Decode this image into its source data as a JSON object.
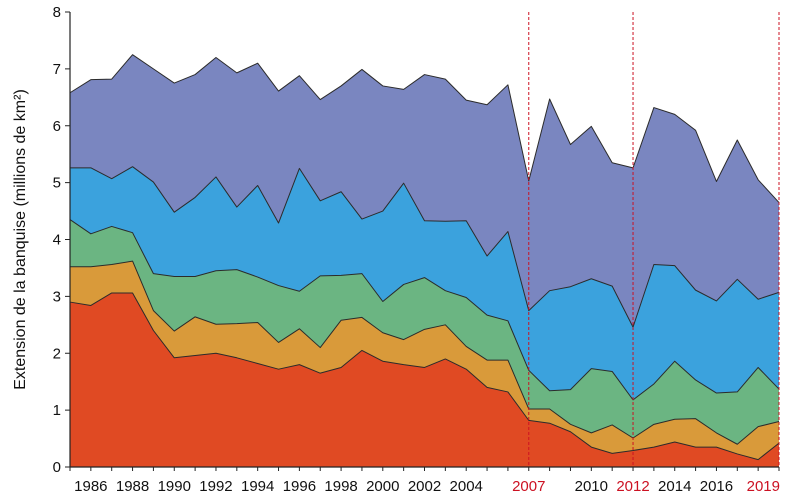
{
  "chart_data": {
    "type": "area",
    "stacked": true,
    "ylabel": "Extension de la banquise (millions de km²)",
    "ylim": [
      0,
      8
    ],
    "yticks": [
      "0",
      "1",
      "2",
      "3",
      "4",
      "5",
      "6",
      "7",
      "8"
    ],
    "xlim": [
      1985,
      2019
    ],
    "x": [
      1985,
      1986,
      1987,
      1988,
      1989,
      1990,
      1991,
      1992,
      1993,
      1994,
      1995,
      1996,
      1997,
      1998,
      1999,
      2000,
      2001,
      2002,
      2003,
      2004,
      2005,
      2006,
      2007,
      2008,
      2009,
      2010,
      2011,
      2012,
      2013,
      2014,
      2015,
      2016,
      2017,
      2018,
      2019
    ],
    "xticks": [
      {
        "value": 1986,
        "label": "1986",
        "color": "#111111"
      },
      {
        "value": 1988,
        "label": "1988",
        "color": "#111111"
      },
      {
        "value": 1990,
        "label": "1990",
        "color": "#111111"
      },
      {
        "value": 1992,
        "label": "1992",
        "color": "#111111"
      },
      {
        "value": 1994,
        "label": "1994",
        "color": "#111111"
      },
      {
        "value": 1996,
        "label": "1996",
        "color": "#111111"
      },
      {
        "value": 1998,
        "label": "1998",
        "color": "#111111"
      },
      {
        "value": 2000,
        "label": "2000",
        "color": "#111111"
      },
      {
        "value": 2002,
        "label": "2002",
        "color": "#111111"
      },
      {
        "value": 2004,
        "label": "2004",
        "color": "#111111"
      },
      {
        "value": 2007,
        "label": "2007",
        "color": "#cc1122"
      },
      {
        "value": 2010,
        "label": "2010",
        "color": "#111111"
      },
      {
        "value": 2012,
        "label": "2012",
        "color": "#cc1122"
      },
      {
        "value": 2014,
        "label": "2014",
        "color": "#111111"
      },
      {
        "value": 2016,
        "label": "2016",
        "color": "#111111"
      },
      {
        "value": 2019,
        "label": "2019",
        "color": "#cc1122"
      }
    ],
    "highlight_years": [
      2007,
      2012,
      2019
    ],
    "highlight_color": "#cc1122",
    "grid": false,
    "series": [
      {
        "color": "#e04a23",
        "values": [
          2.9,
          2.84,
          3.06,
          3.06,
          2.4,
          1.92,
          1.96,
          2.0,
          1.92,
          1.82,
          1.72,
          1.8,
          1.65,
          1.75,
          2.05,
          1.86,
          1.8,
          1.75,
          1.9,
          1.72,
          1.4,
          1.32,
          0.82,
          0.77,
          0.62,
          0.35,
          0.24,
          0.29,
          0.35,
          0.44,
          0.35,
          0.35,
          0.23,
          0.13,
          0.42
        ]
      },
      {
        "color": "#d99a3a",
        "values": [
          0.62,
          0.68,
          0.5,
          0.56,
          0.35,
          0.47,
          0.68,
          0.51,
          0.6,
          0.72,
          0.47,
          0.63,
          0.45,
          0.83,
          0.58,
          0.5,
          0.44,
          0.67,
          0.6,
          0.4,
          0.48,
          0.56,
          0.2,
          0.25,
          0.13,
          0.25,
          0.5,
          0.22,
          0.4,
          0.4,
          0.5,
          0.25,
          0.17,
          0.58,
          0.38
        ]
      },
      {
        "color": "#6bb582",
        "values": [
          0.83,
          0.58,
          0.67,
          0.5,
          0.65,
          0.96,
          0.71,
          0.94,
          0.95,
          0.8,
          1.0,
          0.66,
          1.26,
          0.79,
          0.77,
          0.55,
          0.97,
          0.91,
          0.6,
          0.86,
          0.79,
          0.69,
          0.68,
          0.32,
          0.61,
          1.13,
          0.94,
          0.67,
          0.71,
          1.02,
          0.68,
          0.7,
          0.92,
          1.04,
          0.57
        ]
      },
      {
        "color": "#3ba2dd",
        "values": [
          0.91,
          1.16,
          0.84,
          1.16,
          1.61,
          1.13,
          1.39,
          1.65,
          1.1,
          1.61,
          1.1,
          2.16,
          1.32,
          1.47,
          0.96,
          1.59,
          1.78,
          1.0,
          1.22,
          1.35,
          1.04,
          1.57,
          1.05,
          1.76,
          1.81,
          1.58,
          1.5,
          1.28,
          2.1,
          1.68,
          1.58,
          1.62,
          1.98,
          1.2,
          1.7
        ]
      },
      {
        "color": "#7a86c0",
        "values": [
          1.32,
          1.55,
          1.75,
          1.97,
          1.99,
          2.27,
          2.16,
          2.1,
          2.36,
          2.15,
          2.32,
          1.63,
          1.78,
          1.86,
          2.63,
          2.2,
          1.65,
          2.57,
          2.5,
          2.12,
          2.66,
          2.58,
          2.28,
          3.37,
          2.5,
          2.68,
          2.17,
          2.8,
          2.76,
          2.66,
          2.81,
          2.1,
          2.45,
          2.1,
          1.58
        ]
      }
    ]
  }
}
